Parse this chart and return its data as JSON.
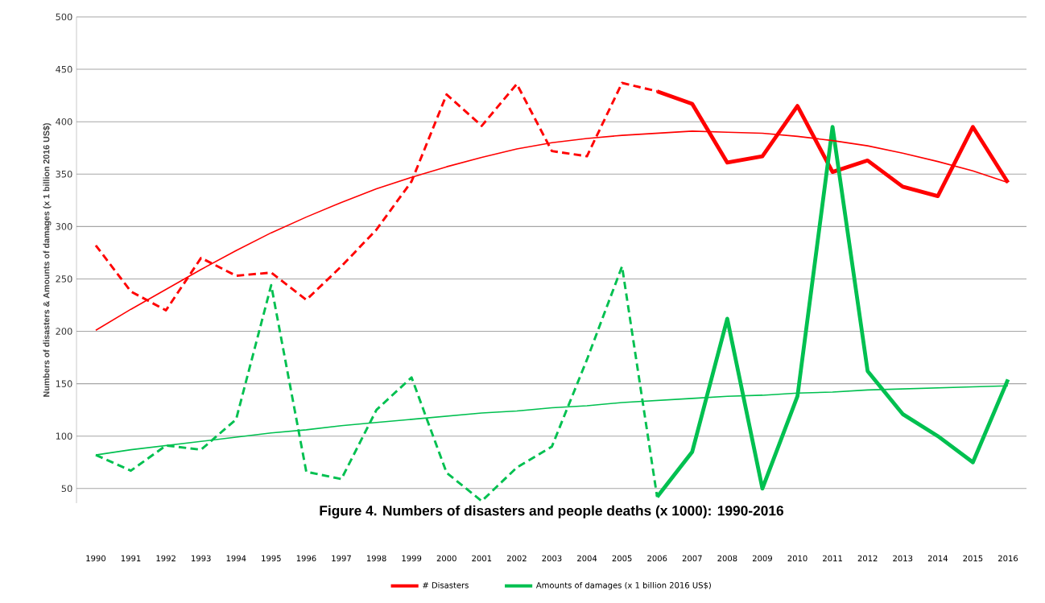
{
  "chart_data": {
    "type": "line",
    "title": "Figure 4. Numbers of disasters and people deaths (x 1000): 1990-2016",
    "ylabel": "Numbers of disasters & Amounts of damages (x 1 billion 2016 US$)",
    "categories": [
      "1990",
      "1991",
      "1992",
      "1993",
      "1994",
      "1995",
      "1996",
      "1997",
      "1998",
      "1999",
      "2000",
      "2001",
      "2002",
      "2003",
      "2004",
      "2005",
      "2006",
      "2007",
      "2008",
      "2009",
      "2010",
      "2011",
      "2012",
      "2013",
      "2014",
      "2015",
      "2016"
    ],
    "series": [
      {
        "color": "#ff0000",
        "line_style": "dashed",
        "values": [
          282,
          238,
          220,
          270,
          253,
          256,
          230,
          262,
          297,
          343,
          426,
          396,
          436,
          372,
          367,
          437,
          429,
          null,
          null,
          null,
          null,
          null,
          null,
          null,
          null,
          null,
          null
        ]
      },
      {
        "name": "# Disasters",
        "color": "#ff0000",
        "line_style": "solid",
        "values": [
          null,
          null,
          null,
          null,
          null,
          null,
          null,
          null,
          null,
          null,
          null,
          null,
          null,
          null,
          null,
          null,
          429,
          417,
          361,
          367,
          415,
          352,
          363,
          338,
          329,
          395,
          342
        ]
      },
      {
        "color": "#00c050",
        "line_style": "dashed",
        "values": [
          82,
          67,
          91,
          87,
          116,
          244,
          66,
          59,
          125,
          156,
          65,
          38,
          70,
          90,
          173,
          262,
          42,
          null,
          null,
          null,
          null,
          null,
          null,
          null,
          null,
          null,
          null
        ]
      },
      {
        "name": "Amounts of damages (x 1 billion 2016 US$)",
        "color": "#00c050",
        "line_style": "solid",
        "values": [
          null,
          null,
          null,
          null,
          null,
          null,
          null,
          null,
          null,
          null,
          null,
          null,
          null,
          null,
          null,
          null,
          42,
          85,
          212,
          50,
          138,
          395,
          162,
          121,
          100,
          75,
          154
        ]
      },
      {
        "color": "#ff0000",
        "line_style": "solid",
        "values": [
          201,
          221,
          240,
          259,
          277,
          294,
          309,
          323,
          336,
          347,
          357,
          366,
          374,
          380,
          384,
          387,
          389,
          391,
          390,
          389,
          386,
          382,
          377,
          370,
          362,
          353,
          342
        ]
      },
      {
        "color": "#00c050",
        "line_style": "solid",
        "values": [
          82,
          87,
          91,
          95,
          99,
          103,
          106,
          110,
          113,
          116,
          119,
          122,
          124,
          127,
          129,
          132,
          134,
          136,
          138,
          139,
          141,
          142,
          144,
          145,
          146,
          147,
          148
        ]
      }
    ],
    "ylim": [
      36,
      500
    ],
    "yticks": [
      50,
      100,
      150,
      200,
      250,
      300,
      350,
      400,
      450,
      500
    ],
    "grid": "y",
    "legend": "bottom",
    "marker": "none"
  }
}
